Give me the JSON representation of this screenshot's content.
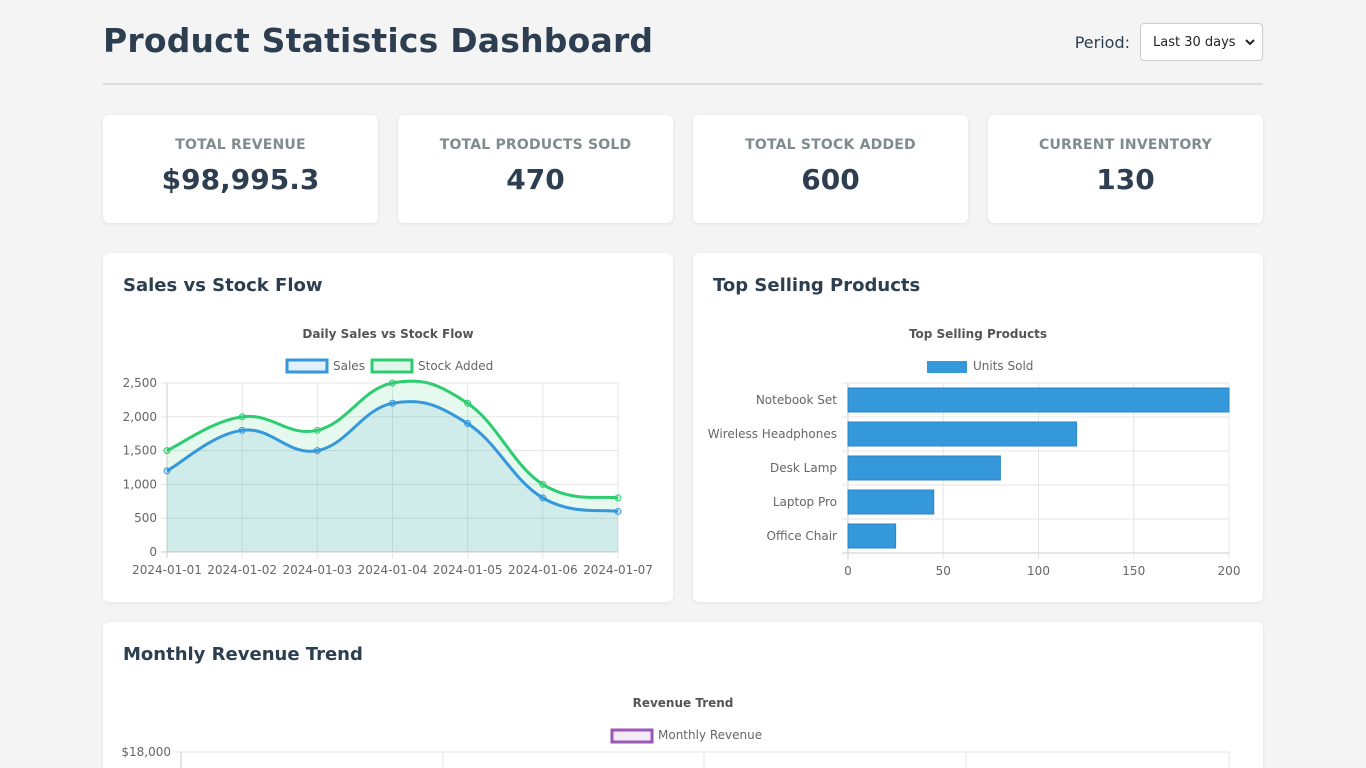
{
  "header": {
    "title": "Product Statistics Dashboard",
    "period_label": "Period:",
    "period_value": "Last 30 days"
  },
  "stats": [
    {
      "label": "TOTAL REVENUE",
      "value": "$98,995.3"
    },
    {
      "label": "TOTAL PRODUCTS SOLD",
      "value": "470"
    },
    {
      "label": "TOTAL STOCK ADDED",
      "value": "600"
    },
    {
      "label": "CURRENT INVENTORY",
      "value": "130"
    }
  ],
  "panels": {
    "flow_title": "Sales vs Stock Flow",
    "top_title": "Top Selling Products",
    "trend_title": "Monthly Revenue Trend"
  },
  "colors": {
    "sales": "#3498db",
    "stock": "#2ecc71",
    "revenue": "#9b59b6"
  },
  "chart_data": [
    {
      "type": "line",
      "title": "Daily Sales vs Stock Flow",
      "categories": [
        "2024-01-01",
        "2024-01-02",
        "2024-01-03",
        "2024-01-04",
        "2024-01-05",
        "2024-01-06",
        "2024-01-07"
      ],
      "series": [
        {
          "name": "Sales",
          "values": [
            1200,
            1800,
            1500,
            2200,
            1900,
            800,
            600
          ]
        },
        {
          "name": "Stock Added",
          "values": [
            1500,
            2000,
            1800,
            2500,
            2200,
            1000,
            800
          ]
        }
      ],
      "ylim": [
        0,
        2500
      ],
      "yticks": [
        0,
        500,
        1000,
        1500,
        2000,
        2500
      ],
      "ytick_labels": [
        "0",
        "500",
        "1,000",
        "1,500",
        "2,000",
        "2,500"
      ],
      "legend": "top"
    },
    {
      "type": "bar",
      "orientation": "horizontal",
      "title": "Top Selling Products",
      "categories": [
        "Notebook Set",
        "Wireless Headphones",
        "Desk Lamp",
        "Laptop Pro",
        "Office Chair"
      ],
      "series": [
        {
          "name": "Units Sold",
          "values": [
            200,
            120,
            80,
            45,
            25
          ]
        }
      ],
      "xlim": [
        0,
        200
      ],
      "xticks": [
        0,
        50,
        100,
        150,
        200
      ],
      "xtick_labels": [
        "0",
        "50",
        "100",
        "150",
        "200"
      ],
      "legend": "top"
    },
    {
      "type": "line",
      "title": "Revenue Trend",
      "series": [
        {
          "name": "Monthly Revenue",
          "values": []
        }
      ],
      "ytick_labels": [
        "$18,000"
      ],
      "legend": "top"
    }
  ]
}
